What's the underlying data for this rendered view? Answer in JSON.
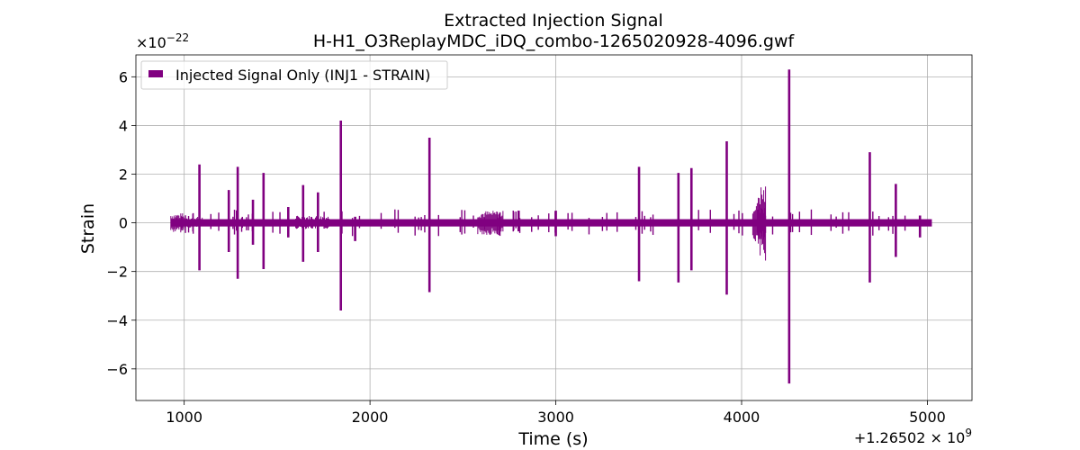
{
  "chart_data": {
    "type": "line",
    "title": "Extracted Injection Signal",
    "subtitle": "H-H1_O3ReplayMDC_iDQ_combo-1265020928-4096.gwf",
    "xlabel": "Time (s)",
    "ylabel": "Strain",
    "x_offset_text": "+1.26502 × 10",
    "x_offset_exponent": "9",
    "y_scale_text": "×10",
    "y_scale_exponent": "−22",
    "xlim": [
      928,
      5024
    ],
    "xlim_axis": [
      740,
      5240
    ],
    "ylim_axis": [
      -7.3,
      6.9
    ],
    "xticks": [
      1000,
      2000,
      3000,
      4000,
      5000
    ],
    "xtick_labels": [
      "1000",
      "2000",
      "3000",
      "4000",
      "5000"
    ],
    "yticks": [
      -6,
      -4,
      -2,
      0,
      2,
      4,
      6
    ],
    "ytick_labels": [
      "−6",
      "−4",
      "−2",
      "0",
      "2",
      "4",
      "6"
    ],
    "grid": true,
    "legend_position": "top-left",
    "series": [
      {
        "name": "Injected Signal Only (INJ1 - STRAIN)",
        "color": "#800080",
        "baseline_band": [
          -0.15,
          0.15
        ],
        "noise_segments": [
          {
            "x": [
              928,
              1000
            ],
            "lo": -0.4,
            "hi": 0.4
          },
          {
            "x": [
              1000,
              1100
            ],
            "lo": -0.2,
            "hi": 0.25
          },
          {
            "x": [
              1600,
              1780
            ],
            "lo": -0.25,
            "hi": 0.3
          },
          {
            "x": [
              2580,
              2720
            ],
            "lo": -0.5,
            "hi": 0.5
          },
          {
            "x": [
              4060,
              4130
            ],
            "lo": -0.8,
            "hi": 0.9
          },
          {
            "x": [
              4090,
              4130
            ],
            "lo": -1.6,
            "hi": 1.6
          }
        ],
        "spikes": [
          {
            "x": 1082,
            "hi": 2.4,
            "lo": -1.95
          },
          {
            "x": 1240,
            "hi": 1.35,
            "lo": -1.2
          },
          {
            "x": 1288,
            "hi": 2.3,
            "lo": -2.3
          },
          {
            "x": 1370,
            "hi": 0.95,
            "lo": -0.9
          },
          {
            "x": 1427,
            "hi": 2.05,
            "lo": -1.9
          },
          {
            "x": 1560,
            "hi": 0.65,
            "lo": -0.6
          },
          {
            "x": 1640,
            "hi": 1.55,
            "lo": -1.6
          },
          {
            "x": 1720,
            "hi": 1.25,
            "lo": -1.2
          },
          {
            "x": 1843,
            "hi": 4.2,
            "lo": -3.6
          },
          {
            "x": 1920,
            "hi": 0.25,
            "lo": -0.75
          },
          {
            "x": 2320,
            "hi": 3.5,
            "lo": -2.85
          },
          {
            "x": 2800,
            "hi": 0.5,
            "lo": -0.35
          },
          {
            "x": 3000,
            "hi": 0.5,
            "lo": -0.55
          },
          {
            "x": 3448,
            "hi": 2.3,
            "lo": -2.4
          },
          {
            "x": 3660,
            "hi": 2.05,
            "lo": -2.45
          },
          {
            "x": 3730,
            "hi": 2.25,
            "lo": -1.95
          },
          {
            "x": 3920,
            "hi": 3.35,
            "lo": -2.95
          },
          {
            "x": 4256,
            "hi": 6.3,
            "lo": -6.6
          },
          {
            "x": 4690,
            "hi": 2.9,
            "lo": -2.45
          },
          {
            "x": 4830,
            "hi": 1.6,
            "lo": -1.4
          },
          {
            "x": 4960,
            "hi": 0.3,
            "lo": -0.6
          }
        ],
        "minor_spike_count": 80
      }
    ]
  }
}
